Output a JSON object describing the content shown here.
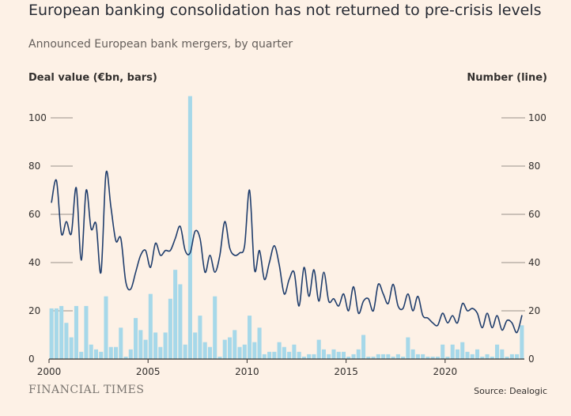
{
  "header": {
    "title": "European banking consolidation has not returned to pre-crisis levels",
    "subtitle": "Announced European bank mergers, by quarter"
  },
  "footer": {
    "brand": "FINANCIAL TIMES",
    "source": "Source: Dealogic"
  },
  "colors": {
    "background": "#fdf1e6",
    "bars": "#a6d8e9",
    "line": "#1f3d6c",
    "axis": "#33302e",
    "gridline": "#999189"
  },
  "chart_data": {
    "type": "bar",
    "left_axis_label": "Deal value (€bn, bars)",
    "right_axis_label": "Number (line)",
    "x_ticks": [
      "2000",
      "2005",
      "2010",
      "2015",
      "2020"
    ],
    "y_ticks_left": [
      "0",
      "20",
      "40",
      "60",
      "80",
      "100"
    ],
    "y_ticks_right": [
      "0",
      "20",
      "40",
      "60",
      "80",
      "100"
    ],
    "ylim": [
      0,
      110
    ],
    "x_start_year": 2000,
    "grid": "tick stubs on both axes",
    "series": [
      {
        "name": "Deal value (€bn, bars)",
        "kind": "bar",
        "values": [
          21,
          21,
          22,
          15,
          9,
          22,
          3,
          22,
          6,
          4,
          3,
          26,
          5,
          5,
          13,
          1,
          4,
          17,
          12,
          8,
          27,
          11,
          5,
          11,
          25,
          37,
          31,
          6,
          109,
          11,
          18,
          7,
          5,
          26,
          1,
          8,
          9,
          12,
          5,
          6,
          18,
          7,
          13,
          2,
          3,
          3,
          7,
          5,
          3,
          6,
          3,
          1,
          2,
          2,
          8,
          4,
          2,
          4,
          3,
          3,
          1,
          2,
          4,
          10,
          1,
          1,
          2,
          2,
          2,
          1,
          2,
          1,
          9,
          4,
          2,
          2,
          1,
          1,
          1,
          6,
          1,
          6,
          4,
          7,
          3,
          2,
          4,
          1,
          2,
          1,
          6,
          4,
          1,
          2,
          2,
          14
        ]
      },
      {
        "name": "Number (line)",
        "kind": "line",
        "values": [
          65,
          74,
          52,
          57,
          52,
          71,
          41,
          70,
          54,
          56,
          36,
          77,
          63,
          49,
          50,
          32,
          29,
          36,
          43,
          45,
          38,
          48,
          43,
          45,
          45,
          50,
          55,
          45,
          44,
          53,
          50,
          36,
          43,
          36,
          43,
          57,
          46,
          43,
          44,
          47,
          70,
          37,
          45,
          33,
          40,
          47,
          39,
          27,
          33,
          36,
          22,
          38,
          26,
          37,
          24,
          36,
          24,
          25,
          22,
          27,
          20,
          30,
          19,
          24,
          25,
          20,
          31,
          27,
          23,
          31,
          22,
          21,
          27,
          20,
          26,
          18,
          17,
          15,
          14,
          19,
          15,
          18,
          15,
          23,
          20,
          21,
          19,
          13,
          19,
          13,
          18,
          12,
          16,
          15,
          11,
          18
        ]
      }
    ]
  }
}
